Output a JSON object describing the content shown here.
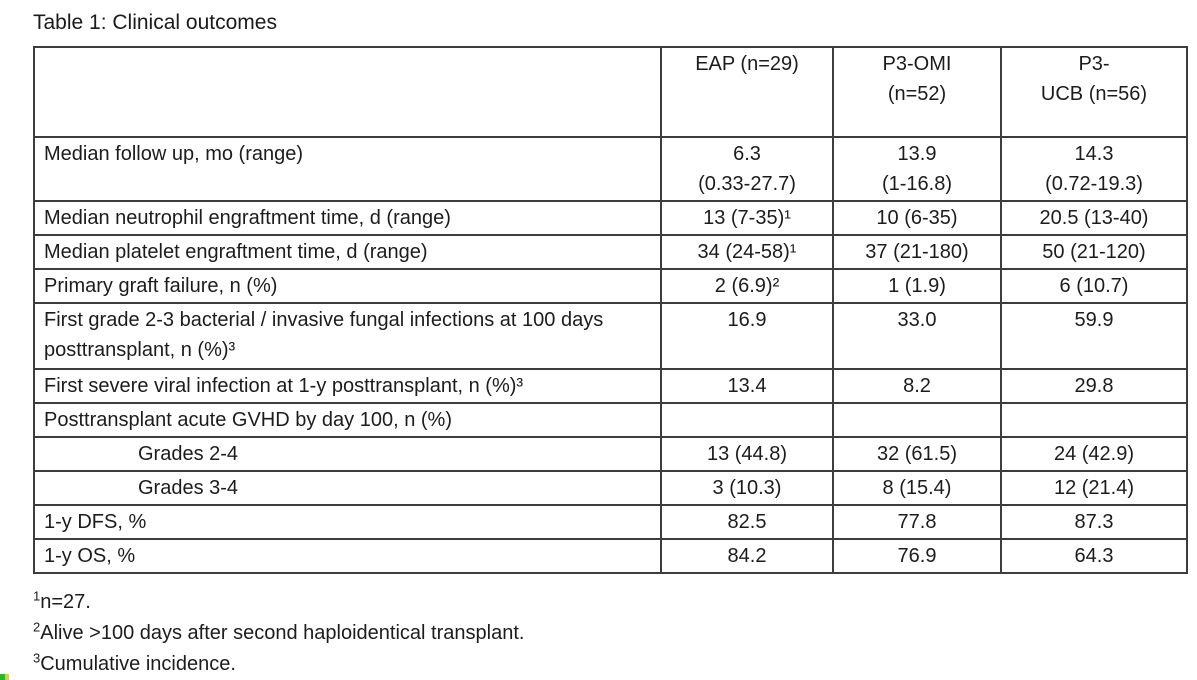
{
  "doc": {
    "title": "Table 1: Clinical outcomes"
  },
  "table": {
    "columns": [
      "",
      "EAP (n=29)",
      "P3-OMI\n(n=52)",
      "P3-\nUCB (n=56)"
    ],
    "rows": [
      {
        "label": "Median follow up, mo (range)",
        "values": [
          "6.3\n(0.33-27.7)",
          "13.9\n(1-16.8)",
          "14.3\n(0.72-19.3)"
        ]
      },
      {
        "label": "Median neutrophil engraftment time, d (range)",
        "values": [
          "13 (7-35)¹",
          "10 (6-35)",
          "20.5 (13-40)"
        ]
      },
      {
        "label": "Median platelet engraftment time, d (range)",
        "values": [
          "34 (24-58)¹",
          "37 (21-180)",
          "50 (21-120)"
        ]
      },
      {
        "label": "Primary graft failure, n (%)",
        "values": [
          "2 (6.9)²",
          "1 (1.9)",
          "6 (10.7)"
        ]
      },
      {
        "label": "First grade 2-3 bacterial / invasive fungal infections at 100 days posttransplant, n (%)³",
        "values": [
          "16.9",
          "33.0",
          "59.9"
        ]
      },
      {
        "label": "First severe viral infection at 1-y posttransplant, n (%)³",
        "values": [
          "13.4",
          "8.2",
          "29.8"
        ]
      },
      {
        "label": "Posttransplant acute GVHD by day 100, n (%)",
        "values": [
          "",
          "",
          ""
        ]
      },
      {
        "label": "Grades 2-4",
        "values": [
          "13 (44.8)",
          "32 (61.5)",
          "24 (42.9)"
        ]
      },
      {
        "label": "Grades 3-4",
        "values": [
          "3 (10.3)",
          "8 (15.4)",
          "12 (21.4)"
        ]
      },
      {
        "label": "1-y DFS, %",
        "values": [
          "82.5",
          "77.8",
          "87.3"
        ]
      },
      {
        "label": "1-y OS, %",
        "values": [
          "84.2",
          "76.9",
          "64.3"
        ]
      }
    ]
  },
  "footnotes": [
    {
      "sup": "1",
      "text": "n=27."
    },
    {
      "sup": "2",
      "text": "Alive >100 days after second haploidentical transplant."
    },
    {
      "sup": "3",
      "text": "Cumulative incidence."
    }
  ],
  "colors": {
    "text": "#1c1c1c",
    "border": "#3d3d3d",
    "background": "#ffffff"
  }
}
